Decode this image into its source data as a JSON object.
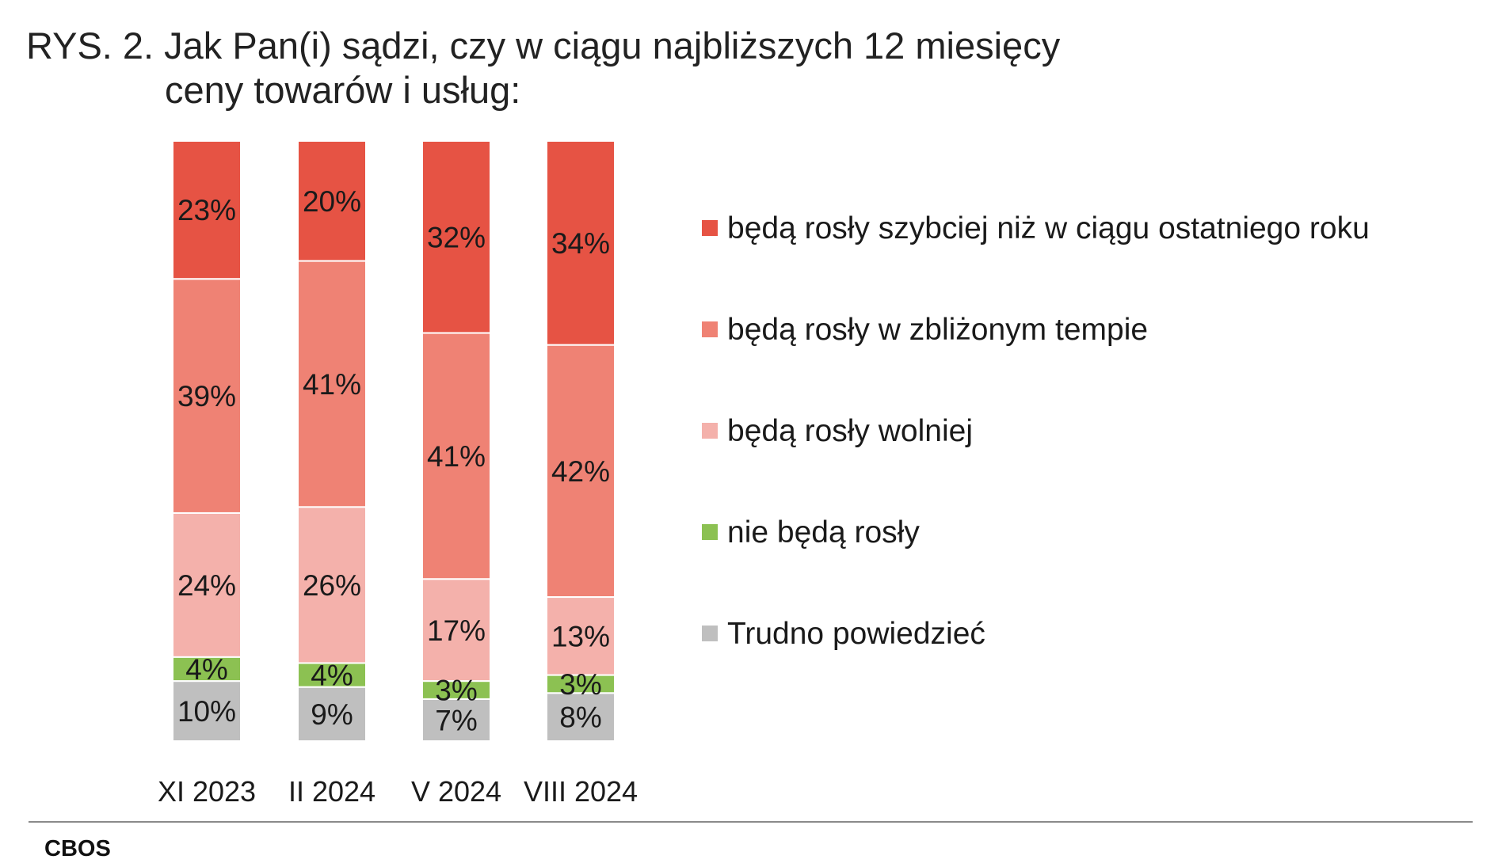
{
  "title_line1": "RYS. 2. Jak Pan(i) sądzi, czy w ciągu najbliższych 12 miesięcy",
  "title_line2": "ceny towarów i usług:",
  "source": "CBOS",
  "colors": {
    "series": [
      "#e65344",
      "#ef8274",
      "#f4b1ab",
      "#8cc152",
      "#bfbfbf"
    ],
    "separator": "#ffffff",
    "rule": "#8a8a8a"
  },
  "chart_data": {
    "type": "bar",
    "stacked": true,
    "percent_stacked": true,
    "categories": [
      "XI 2023",
      "II 2024",
      "V 2024",
      "VIII 2024"
    ],
    "series": [
      {
        "name": "będą rosły szybciej niż w ciągu ostatniego roku",
        "values": [
          23,
          20,
          32,
          34
        ],
        "labels": [
          "23%",
          "20%",
          "32%",
          "34%"
        ]
      },
      {
        "name": "będą rosły w zbliżonym tempie",
        "values": [
          39,
          41,
          41,
          42
        ],
        "labels": [
          "39%",
          "41%",
          "41%",
          "42%"
        ]
      },
      {
        "name": "będą rosły wolniej",
        "values": [
          24,
          26,
          17,
          13
        ],
        "labels": [
          "24%",
          "26%",
          "17%",
          "13%"
        ]
      },
      {
        "name": "nie będą rosły",
        "values": [
          4,
          4,
          3,
          3
        ],
        "labels": [
          "4%",
          "4%",
          "3%",
          "3%"
        ]
      },
      {
        "name": "Trudno powiedzieć",
        "values": [
          10,
          9,
          7,
          8
        ],
        "labels": [
          "10%",
          "9%",
          "7%",
          "8%"
        ]
      }
    ],
    "legend_position": "right",
    "grid": false
  }
}
